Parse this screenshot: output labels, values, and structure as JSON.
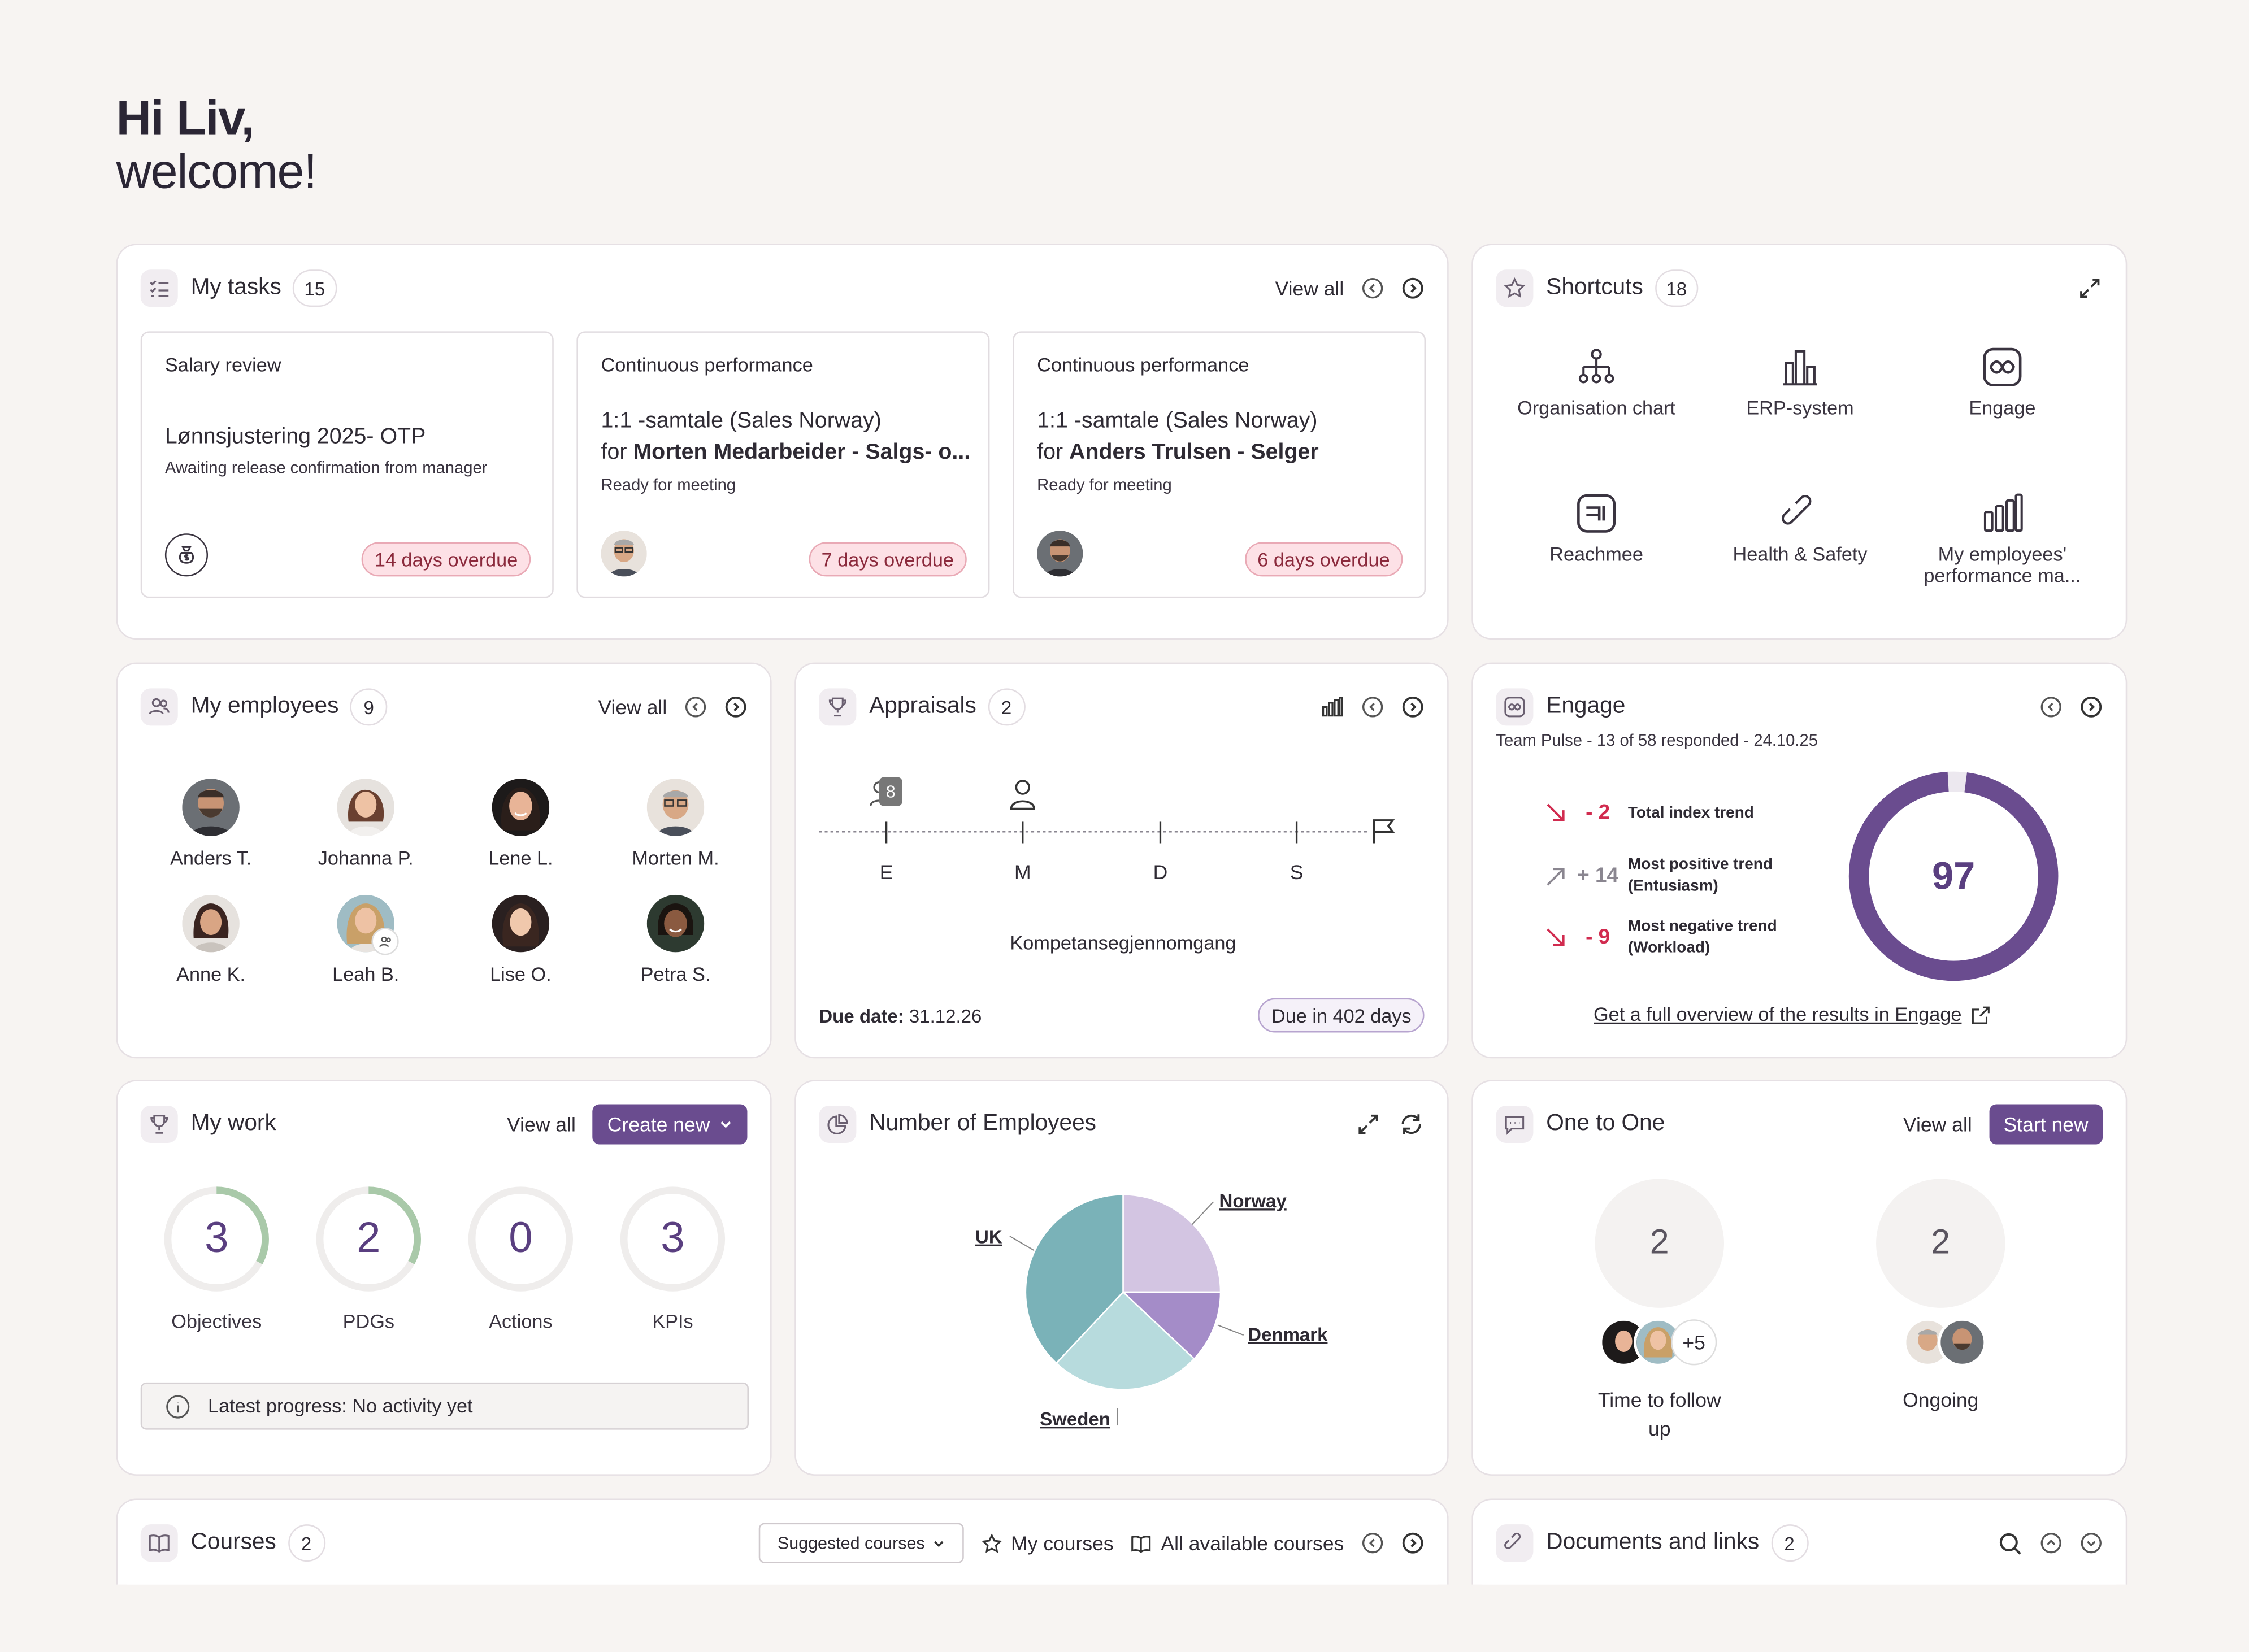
{
  "greeting": {
    "line1": "Hi Liv,",
    "line2": "welcome!"
  },
  "tasks": {
    "title": "My tasks",
    "count": "15",
    "view_all": "View all",
    "items": [
      {
        "category": "Salary review",
        "title": "Lønnsjustering 2025- OTP",
        "subtitle": "Awaiting release confirmation from manager",
        "status": "14 days overdue",
        "icon": "money-bag-icon"
      },
      {
        "category": "Continuous performance",
        "title_line1": "1:1 -samtale (Sales Norway)",
        "title_for": "for",
        "title_bold": "Morten Medarbeider - Salgs- o...",
        "subtitle": "Ready for meeting",
        "status": "7 days overdue"
      },
      {
        "category": "Continuous performance",
        "title_line1": "1:1 -samtale (Sales Norway)",
        "title_for": "for",
        "title_bold": "Anders Trulsen - Selger",
        "subtitle": "Ready for meeting",
        "status": "6 days overdue"
      }
    ]
  },
  "shortcuts": {
    "title": "Shortcuts",
    "count": "18",
    "items": [
      {
        "label": "Organisation chart",
        "icon": "org-chart-icon"
      },
      {
        "label": "ERP-system",
        "icon": "building-icon"
      },
      {
        "label": "Engage",
        "icon": "engage-icon"
      },
      {
        "label": "Reachmee",
        "icon": "reachmee-icon"
      },
      {
        "label": "Health & Safety",
        "icon": "link-icon"
      },
      {
        "label_line1": "My employees'",
        "label_line2": "performance ma...",
        "icon": "bar-chart-icon"
      }
    ]
  },
  "employees": {
    "title": "My employees",
    "count": "9",
    "view_all": "View all",
    "people": [
      "Anders T.",
      "Johanna P.",
      "Lene L.",
      "Morten M.",
      "Anne K.",
      "Leah B.",
      "Lise O.",
      "Petra S."
    ]
  },
  "appraisals": {
    "title": "Appraisals",
    "count": "2",
    "marker_badge": "8",
    "steps": [
      "E",
      "M",
      "D",
      "S"
    ],
    "process_name": "Kompetansegjennomgang",
    "due_label": "Due date:",
    "due_date": "31.12.26",
    "due_in": "Due in 402 days"
  },
  "engage": {
    "title": "Engage",
    "subtitle": "Team Pulse - 13 of 58 responded - 24.10.25",
    "trends": [
      {
        "value": "- 2",
        "label": "Total index trend",
        "direction": "down",
        "color": "#d12b4f"
      },
      {
        "value": "+ 14",
        "label_line1": "Most positive trend",
        "label_line2": "(Entusiasm)",
        "direction": "up",
        "color": "#8a8690"
      },
      {
        "value": "- 9",
        "label_line1": "Most negative trend",
        "label_line2": "(Workload)",
        "direction": "down",
        "color": "#d12b4f"
      }
    ],
    "score": "97",
    "score_fraction": 0.97,
    "link": "Get a full overview of the results in Engage"
  },
  "my_work": {
    "title": "My work",
    "view_all": "View all",
    "create": "Create new",
    "rings": [
      {
        "value": "3",
        "label": "Objectives",
        "fraction": 0.33
      },
      {
        "value": "2",
        "label": "PDGs",
        "fraction": 0.33
      },
      {
        "value": "0",
        "label": "Actions",
        "fraction": 0
      },
      {
        "value": "3",
        "label": "KPIs",
        "fraction": 0
      }
    ],
    "progress": "Latest progress: No activity yet"
  },
  "chart_data": {
    "type": "pie",
    "title": "Number of Employees",
    "categories": [
      "Norway",
      "Denmark",
      "Sweden",
      "UK"
    ],
    "values": [
      25,
      12,
      25,
      38
    ],
    "colors": [
      "#d3c5e2",
      "#a48cc8",
      "#b7dbdd",
      "#7ab2b8"
    ]
  },
  "one_to_one": {
    "title": "One to One",
    "view_all": "View all",
    "start": "Start new",
    "stats": [
      {
        "value": "2",
        "label_line1": "Time to follow",
        "label_line2": "up",
        "extra": "+5"
      },
      {
        "value": "2",
        "label_line1": "Ongoing",
        "label_line2": ""
      }
    ]
  },
  "courses": {
    "title": "Courses",
    "count": "2",
    "dropdown": "Suggested courses",
    "my_courses": "My courses",
    "all_courses": "All available courses"
  },
  "documents": {
    "title": "Documents and links",
    "count": "2"
  },
  "colors": {
    "accent": "#6a4c8f",
    "overdue_bg": "#fde1e6",
    "ring_green": "#a9c9a9",
    "bg": "#f7f4f2"
  }
}
